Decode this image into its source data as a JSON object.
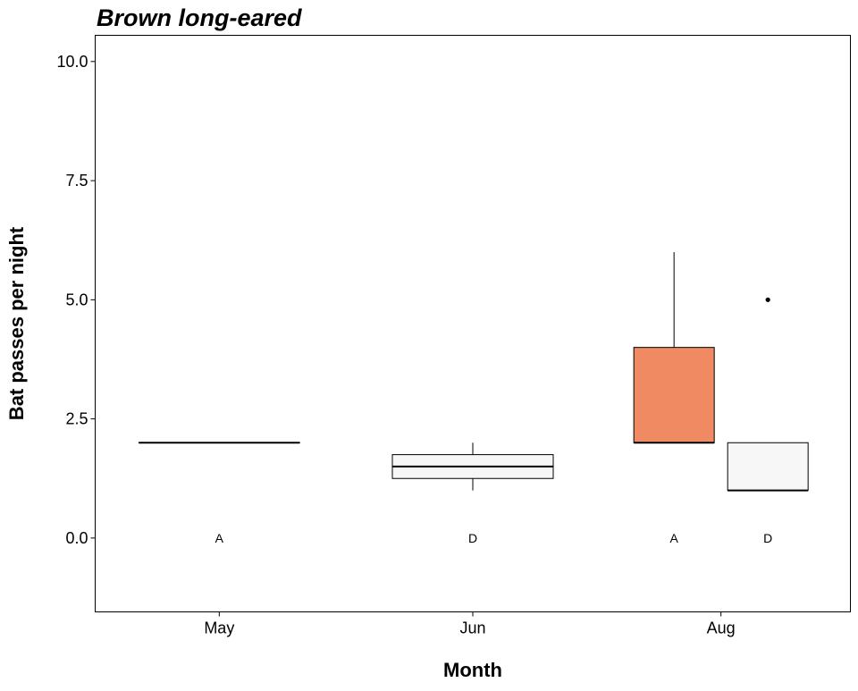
{
  "chart_data": {
    "type": "boxplot",
    "title": "Brown long-eared",
    "xlabel": "Month",
    "ylabel": "Bat passes per night",
    "categories": [
      "May",
      "Jun",
      "Aug"
    ],
    "ylim": [
      -1.55,
      10.55
    ],
    "yticks": [
      0.0,
      2.5,
      5.0,
      7.5,
      10.0
    ],
    "ytick_labels": [
      "0.0",
      "2.5",
      "5.0",
      "7.5",
      "10.0"
    ],
    "grid": false,
    "legend": "none",
    "boxes": [
      {
        "category": "May",
        "group": "A",
        "min": 2,
        "q1": 2,
        "median": 2,
        "q3": 2,
        "max": 2,
        "outliers": [],
        "fill": "#ffffff"
      },
      {
        "category": "Jun",
        "group": "D",
        "min": 1,
        "q1": 1.25,
        "median": 1.5,
        "q3": 1.75,
        "max": 2,
        "outliers": [],
        "fill": "#f7f7f7"
      },
      {
        "category": "Aug",
        "group": "A",
        "min": 2,
        "q1": 2,
        "median": 2,
        "q3": 4,
        "max": 6,
        "outliers": [],
        "fill": "#ef8a62"
      },
      {
        "category": "Aug",
        "group": "D",
        "min": 1,
        "q1": 1,
        "median": 1,
        "q3": 2,
        "max": 2,
        "outliers": [
          5
        ],
        "fill": "#f7f7f7"
      }
    ],
    "colors": {
      "A": "#ef8a62",
      "D": "#f7f7f7"
    }
  }
}
